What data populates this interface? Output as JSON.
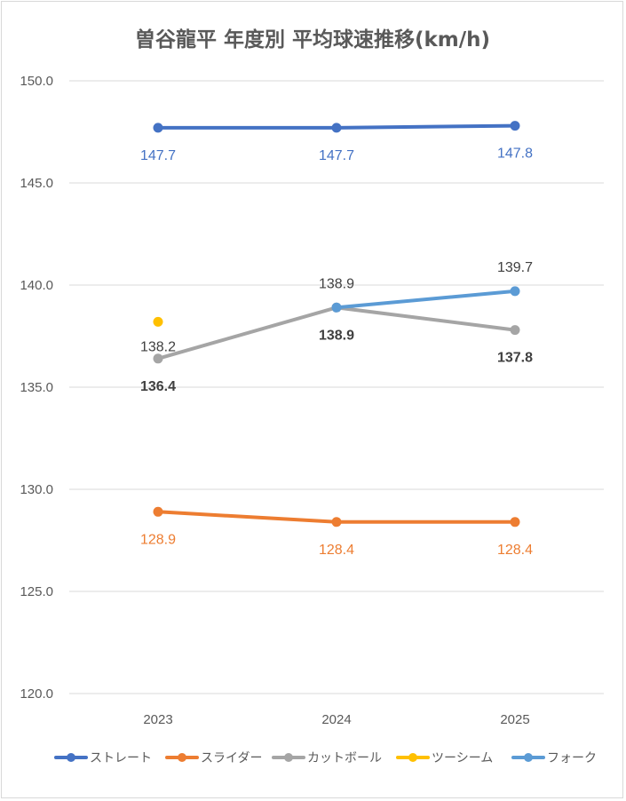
{
  "chart_data": {
    "type": "line",
    "title": "曽谷龍平 年度別 平均球速推移(km/h)",
    "categories": [
      "2023",
      "2024",
      "2025"
    ],
    "ylim": [
      120,
      150
    ],
    "yticks": [
      "120.0",
      "125.0",
      "130.0",
      "135.0",
      "140.0",
      "145.0",
      "150.0"
    ],
    "grid": true,
    "legend_position": "bottom",
    "series": [
      {
        "name": "ストレート",
        "color": "#4472C4",
        "values": [
          147.7,
          147.7,
          147.8
        ],
        "labels": [
          "147.7",
          "147.7",
          "147.8"
        ]
      },
      {
        "name": "スライダー",
        "color": "#ED7D31",
        "values": [
          128.9,
          128.4,
          128.4
        ],
        "labels": [
          "128.9",
          "128.4",
          "128.4"
        ]
      },
      {
        "name": "カットボール",
        "color": "#A5A5A5",
        "values": [
          136.4,
          138.9,
          137.8
        ],
        "labels": [
          "136.4",
          "138.9",
          "137.8"
        ]
      },
      {
        "name": "ツーシーム",
        "color": "#FFC000",
        "values": [
          138.2,
          null,
          null
        ],
        "labels": [
          "138.2",
          null,
          null
        ]
      },
      {
        "name": "フォーク",
        "color": "#5B9BD5",
        "values": [
          null,
          138.9,
          139.7
        ],
        "labels": [
          null,
          "138.9",
          "139.7"
        ]
      }
    ]
  }
}
